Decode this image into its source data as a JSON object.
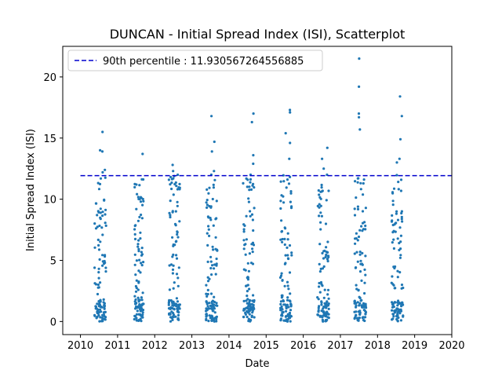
{
  "chart_data": {
    "type": "scatter",
    "title": "DUNCAN - Initial Spread Index (ISI), Scatterplot",
    "xlabel": "Date",
    "ylabel": "Initial Spread Index (ISI)",
    "xlim": [
      2010,
      2020
    ],
    "ylim": [
      -1.07,
      22.5
    ],
    "x_ticks": [
      "2010",
      "2011",
      "2012",
      "2013",
      "2014",
      "2015",
      "2016",
      "2017",
      "2018",
      "2019",
      "2020"
    ],
    "y_ticks": [
      "0",
      "5",
      "10",
      "15",
      "20"
    ],
    "point_color": "#1f77b4",
    "reference_line": {
      "label": "90th percentile : 11.930567264556885",
      "y": 11.930567264556885,
      "color": "#0000cd",
      "style": "dashed"
    },
    "legend_position": "upper-left",
    "seasons": [
      {
        "x_start": 2010.38,
        "x_end": 2010.69,
        "max": 15.5,
        "top": [
          15.5,
          14.0,
          13.9,
          12.4,
          12.2
        ]
      },
      {
        "x_start": 2011.45,
        "x_end": 2011.7,
        "max": 13.7,
        "top": [
          13.7,
          10.1,
          10.0,
          9.8
        ]
      },
      {
        "x_start": 2012.38,
        "x_end": 2012.68,
        "max": 12.8,
        "top": [
          12.8,
          12.3,
          12.0,
          11.7
        ]
      },
      {
        "x_start": 2013.38,
        "x_end": 2013.69,
        "max": 16.8,
        "top": [
          16.8,
          14.7,
          13.9,
          12.3,
          12.0
        ]
      },
      {
        "x_start": 2014.38,
        "x_end": 2014.69,
        "max": 17.0,
        "top": [
          17.0,
          16.3,
          13.6,
          12.9,
          12.0
        ]
      },
      {
        "x_start": 2015.38,
        "x_end": 2015.69,
        "max": 17.3,
        "top": [
          17.3,
          17.1,
          15.4,
          14.6,
          13.3
        ]
      },
      {
        "x_start": 2016.38,
        "x_end": 2016.69,
        "max": 14.2,
        "top": [
          14.2,
          13.3,
          12.5,
          12.0
        ]
      },
      {
        "x_start": 2017.38,
        "x_end": 2017.69,
        "max": 21.5,
        "top": [
          21.5,
          19.2,
          17.0,
          16.7,
          15.7
        ]
      },
      {
        "x_start": 2018.38,
        "x_end": 2018.69,
        "max": 18.4,
        "top": [
          18.4,
          16.8,
          14.9,
          13.3,
          13.0
        ]
      }
    ]
  }
}
